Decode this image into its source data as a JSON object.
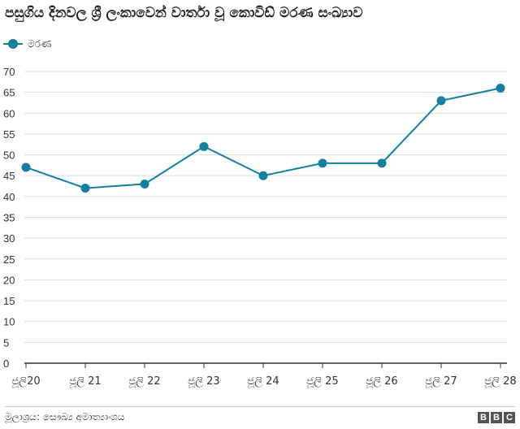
{
  "title": "පසුගිය දිනවල ශ්‍රී ලංකාවෙන් වාර්තා වූ කොවිඩ් මරණ සංඛ්‍යාව",
  "legend": {
    "label": "මරණ"
  },
  "source": "මූලාශ්‍රය: සෞඛ්‍ය අමාත්‍යාංශය",
  "logo": [
    "B",
    "B",
    "C"
  ],
  "colors": {
    "series": "#1380a1",
    "grid": "#dddddd",
    "axis": "#333333"
  },
  "chart_data": {
    "type": "line",
    "categories": [
      "ජූලි20",
      "ජූලි 21",
      "ජූලි 22",
      "ජූලි 23",
      "ජූලි 24",
      "ජූලි 25",
      "ජූලි 26",
      "ජූලි 27",
      "ජූලි 28"
    ],
    "series": [
      {
        "name": "මරණ",
        "values": [
          47,
          42,
          43,
          52,
          45,
          48,
          48,
          63,
          66
        ]
      }
    ],
    "ylim": [
      0,
      70
    ],
    "yticks": [
      0,
      5,
      10,
      15,
      20,
      25,
      30,
      35,
      40,
      45,
      50,
      55,
      60,
      65,
      70
    ],
    "grid": true,
    "legend_position": "top-left"
  }
}
